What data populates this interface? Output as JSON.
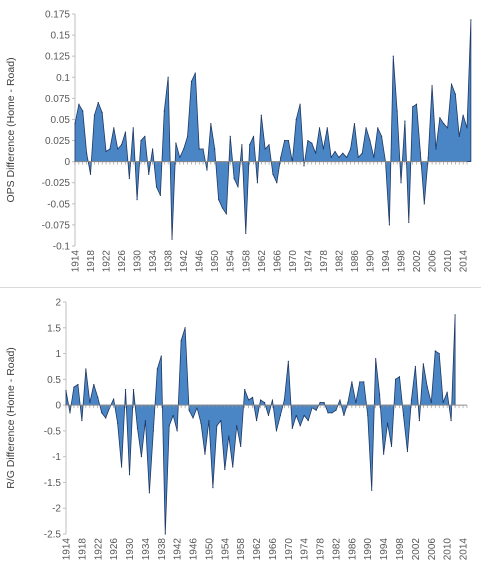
{
  "chart_data": [
    {
      "type": "area",
      "title": "",
      "xlabel": "",
      "ylabel": "OPS Difference (Home - Road)",
      "ylim": [
        -0.1,
        0.175
      ],
      "yticks": [
        -0.1,
        -0.075,
        -0.05,
        -0.025,
        0,
        0.025,
        0.05,
        0.075,
        0.1,
        0.125,
        0.15,
        0.175
      ],
      "ytick_labels": [
        "-0.1",
        "-0.075",
        "-0.05",
        "-0.025",
        "0",
        "0.025",
        "0.05",
        "0.075",
        "0.1",
        "0.125",
        "0.15",
        "0.175"
      ],
      "xtick_labels": [
        "1914",
        "1918",
        "1922",
        "1926",
        "1930",
        "1934",
        "1938",
        "1942",
        "1946",
        "1950",
        "1954",
        "1958",
        "1962",
        "1966",
        "1970",
        "1974",
        "1978",
        "1982",
        "1986",
        "1990",
        "1994",
        "1998",
        "2002",
        "2006",
        "2010",
        "2014"
      ],
      "x_start": 1914,
      "x_end": 2015,
      "grid": false,
      "fill_color": "#4a86c5",
      "edge_color": "#1f3864",
      "values": [
        0.045,
        0.068,
        0.06,
        0.01,
        -0.015,
        0.055,
        0.07,
        0.058,
        0.012,
        0.015,
        0.04,
        0.015,
        0.02,
        0.035,
        -0.02,
        0.04,
        -0.045,
        0.025,
        0.03,
        -0.015,
        0.015,
        -0.03,
        -0.04,
        0.06,
        0.1,
        -0.092,
        0.022,
        0.005,
        0.015,
        0.03,
        0.095,
        0.105,
        0.015,
        0.015,
        -0.01,
        0.045,
        0.015,
        -0.045,
        -0.055,
        -0.062,
        0.03,
        -0.02,
        -0.03,
        0.02,
        -0.085,
        0.02,
        0.03,
        -0.025,
        0.055,
        0.015,
        0.02,
        -0.015,
        -0.025,
        0.005,
        0.025,
        0.025,
        0.0,
        0.05,
        0.068,
        -0.005,
        0.025,
        0.022,
        0.01,
        0.04,
        0.015,
        0.04,
        0.005,
        0.012,
        0.005,
        0.01,
        0.005,
        0.015,
        0.045,
        0.005,
        0.01,
        0.04,
        0.025,
        0.005,
        0.04,
        0.03,
        0.0,
        -0.075,
        0.125,
        0.06,
        -0.025,
        0.048,
        -0.072,
        0.065,
        0.068,
        0.01,
        -0.05,
        0.005,
        0.09,
        0.015,
        0.052,
        0.045,
        0.04,
        0.092,
        0.08,
        0.03,
        0.055,
        0.04,
        0.168
      ]
    },
    {
      "type": "area",
      "title": "",
      "xlabel": "",
      "ylabel": "R/G Difference (Home - Road)",
      "ylim": [
        -2.5,
        2
      ],
      "yticks": [
        -2.5,
        -2,
        -1.5,
        -1,
        -0.5,
        0,
        0.5,
        1,
        1.5,
        2
      ],
      "ytick_labels": [
        "-2.5",
        "-2",
        "-1.5",
        "-1",
        "-0.5",
        "0",
        "0.5",
        "1",
        "1.5",
        "2"
      ],
      "xtick_labels": [
        "1914",
        "1918",
        "1922",
        "1926",
        "1930",
        "1934",
        "1938",
        "1942",
        "1946",
        "1950",
        "1954",
        "1958",
        "1962",
        "1966",
        "1970",
        "1974",
        "1978",
        "1982",
        "1986",
        "1990",
        "1994",
        "1998",
        "2002",
        "2006",
        "2010",
        "2014"
      ],
      "x_start": 1914,
      "x_end": 2015,
      "grid": false,
      "fill_color": "#4a86c5",
      "edge_color": "#1f3864",
      "values": [
        0.28,
        -0.15,
        0.35,
        0.4,
        -0.3,
        0.7,
        0.05,
        0.4,
        0.15,
        -0.15,
        -0.25,
        -0.05,
        0.12,
        -0.35,
        -1.2,
        0.3,
        -1.35,
        0.3,
        -0.45,
        -1.0,
        -0.3,
        -1.7,
        -0.5,
        0.7,
        0.95,
        -2.5,
        -0.4,
        -0.2,
        -0.5,
        1.25,
        1.5,
        -0.1,
        -0.25,
        -0.05,
        -0.35,
        -0.95,
        -0.3,
        -1.6,
        -0.4,
        -0.3,
        -1.25,
        -0.6,
        -1.2,
        -0.4,
        -0.8,
        0.3,
        0.1,
        0.15,
        -0.3,
        0.1,
        0.05,
        -0.2,
        0.1,
        -0.5,
        -0.2,
        0.1,
        0.85,
        -0.45,
        -0.2,
        -0.4,
        -0.2,
        -0.3,
        -0.05,
        -0.1,
        0.05,
        0.05,
        -0.15,
        -0.15,
        -0.1,
        0.1,
        -0.2,
        0.05,
        0.45,
        0.05,
        0.45,
        0.45,
        -0.2,
        -1.65,
        0.9,
        0.2,
        -0.95,
        -0.35,
        -0.8,
        0.5,
        0.55,
        -0.2,
        -0.9,
        0.1,
        0.75,
        -0.3,
        0.8,
        0.35,
        0.05,
        1.05,
        1.0,
        0.05,
        0.25,
        -0.3,
        1.75
      ]
    }
  ]
}
